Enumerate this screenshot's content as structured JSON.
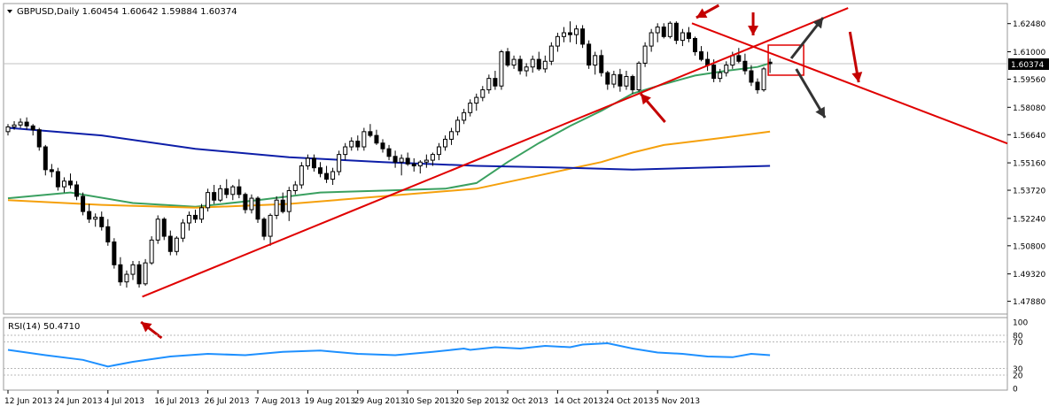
{
  "header": {
    "symbol_line": "GBPUSD,Daily  1.60454 1.60642 1.59884 1.60374",
    "menu_icon": "triangle-down-icon"
  },
  "rsi": {
    "label": "RSI(14) 50.4710",
    "levels": [
      100,
      80,
      70,
      30,
      20,
      0
    ],
    "level_labels": [
      "100",
      "80",
      "70",
      "30",
      "20",
      "0"
    ]
  },
  "current_price": "1.60374",
  "colors": {
    "bull": "#ffffff",
    "bear": "#000000",
    "trend": "#e00000",
    "ma_green": "#3aa060",
    "ma_orange": "#f5a00c",
    "ma_blue": "#0d1ea8",
    "rsi": "#1e90ff",
    "arrow_red": "#c40000",
    "arrow_dark": "#333333"
  },
  "chart_data": [
    {
      "type": "candlestick",
      "title": "GBPUSD,Daily",
      "ohlc_header": {
        "open": 1.60454,
        "high": 1.60642,
        "low": 1.59884,
        "close": 1.60374
      },
      "ylim": [
        1.4735,
        1.6335
      ],
      "yticks": [
        1.6248,
        1.61,
        1.5956,
        1.5808,
        1.5664,
        1.5516,
        1.5372,
        1.5224,
        1.508,
        1.4932,
        1.4788
      ],
      "ytick_labels": [
        "1.62480",
        "1.61000",
        "1.59560",
        "1.58080",
        "1.56640",
        "1.55160",
        "1.53720",
        "1.52240",
        "1.50800",
        "1.49320",
        "1.47880"
      ],
      "xtick_labels": [
        "12 Jun 2013",
        "24 Jun 2013",
        "4 Jul 2013",
        "16 Jul 2013",
        "26 Jul 2013",
        "7 Aug 2013",
        "19 Aug 2013",
        "29 Aug 2013",
        "10 Sep 2013",
        "20 Sep 2013",
        "2 Oct 2013",
        "14 Oct 2013",
        "24 Oct 2013",
        "5 Nov 2013"
      ],
      "xtick_index": [
        0,
        8,
        16,
        24,
        32,
        40,
        48,
        56,
        64,
        72,
        80,
        88,
        96,
        104
      ],
      "candles": [
        [
          1.568,
          1.572,
          1.566,
          1.5705
        ],
        [
          1.5705,
          1.5735,
          1.569,
          1.5715
        ],
        [
          1.5715,
          1.575,
          1.57,
          1.573
        ],
        [
          1.573,
          1.5755,
          1.569,
          1.571
        ],
        [
          1.571,
          1.572,
          1.566,
          1.569
        ],
        [
          1.569,
          1.57,
          1.558,
          1.56
        ],
        [
          1.56,
          1.561,
          1.545,
          1.548
        ],
        [
          1.548,
          1.551,
          1.544,
          1.547
        ],
        [
          1.547,
          1.549,
          1.537,
          1.539
        ],
        [
          1.539,
          1.544,
          1.536,
          1.542
        ],
        [
          1.542,
          1.546,
          1.538,
          1.54
        ],
        [
          1.54,
          1.542,
          1.532,
          1.534
        ],
        [
          1.534,
          1.536,
          1.524,
          1.526
        ],
        [
          1.526,
          1.53,
          1.52,
          1.522
        ],
        [
          1.522,
          1.525,
          1.518,
          1.523
        ],
        [
          1.523,
          1.526,
          1.516,
          1.518
        ],
        [
          1.518,
          1.522,
          1.508,
          1.51
        ],
        [
          1.51,
          1.512,
          1.496,
          1.498
        ],
        [
          1.498,
          1.502,
          1.487,
          1.489
        ],
        [
          1.489,
          1.495,
          1.486,
          1.493
        ],
        [
          1.493,
          1.5,
          1.49,
          1.498
        ],
        [
          1.498,
          1.5,
          1.486,
          1.488
        ],
        [
          1.488,
          1.501,
          1.487,
          1.499
        ],
        [
          1.499,
          1.513,
          1.498,
          1.511
        ],
        [
          1.511,
          1.524,
          1.509,
          1.522
        ],
        [
          1.522,
          1.523,
          1.511,
          1.513
        ],
        [
          1.513,
          1.516,
          1.503,
          1.505
        ],
        [
          1.505,
          1.513,
          1.503,
          1.512
        ],
        [
          1.512,
          1.522,
          1.51,
          1.52
        ],
        [
          1.52,
          1.526,
          1.516,
          1.524
        ],
        [
          1.524,
          1.527,
          1.52,
          1.522
        ],
        [
          1.522,
          1.53,
          1.52,
          1.528
        ],
        [
          1.528,
          1.538,
          1.526,
          1.536
        ],
        [
          1.536,
          1.54,
          1.53,
          1.532
        ],
        [
          1.532,
          1.54,
          1.531,
          1.538
        ],
        [
          1.538,
          1.543,
          1.533,
          1.535
        ],
        [
          1.535,
          1.54,
          1.532,
          1.539
        ],
        [
          1.539,
          1.543,
          1.533,
          1.535
        ],
        [
          1.535,
          1.536,
          1.525,
          1.527
        ],
        [
          1.527,
          1.535,
          1.525,
          1.533
        ],
        [
          1.533,
          1.534,
          1.52,
          1.522
        ],
        [
          1.522,
          1.523,
          1.511,
          1.513
        ],
        [
          1.513,
          1.525,
          1.508,
          1.524
        ],
        [
          1.524,
          1.534,
          1.522,
          1.532
        ],
        [
          1.532,
          1.536,
          1.525,
          1.526
        ],
        [
          1.526,
          1.539,
          1.521,
          1.537
        ],
        [
          1.537,
          1.542,
          1.535,
          1.54
        ],
        [
          1.54,
          1.552,
          1.538,
          1.55
        ],
        [
          1.55,
          1.556,
          1.548,
          1.554
        ],
        [
          1.554,
          1.556,
          1.547,
          1.549
        ],
        [
          1.549,
          1.552,
          1.544,
          1.546
        ],
        [
          1.546,
          1.55,
          1.541,
          1.543
        ],
        [
          1.543,
          1.549,
          1.54,
          1.547
        ],
        [
          1.547,
          1.558,
          1.545,
          1.556
        ],
        [
          1.556,
          1.562,
          1.553,
          1.56
        ],
        [
          1.56,
          1.565,
          1.558,
          1.563
        ],
        [
          1.563,
          1.566,
          1.558,
          1.56
        ],
        [
          1.56,
          1.57,
          1.558,
          1.568
        ],
        [
          1.568,
          1.572,
          1.565,
          1.566
        ],
        [
          1.566,
          1.569,
          1.561,
          1.562
        ],
        [
          1.562,
          1.564,
          1.557,
          1.559
        ],
        [
          1.559,
          1.561,
          1.553,
          1.555
        ],
        [
          1.555,
          1.558,
          1.549,
          1.552
        ],
        [
          1.552,
          1.556,
          1.545,
          1.554
        ],
        [
          1.554,
          1.557,
          1.55,
          1.551
        ],
        [
          1.551,
          1.554,
          1.547,
          1.55
        ],
        [
          1.55,
          1.553,
          1.546,
          1.552
        ],
        [
          1.552,
          1.556,
          1.549,
          1.553
        ],
        [
          1.553,
          1.557,
          1.55,
          1.556
        ],
        [
          1.556,
          1.562,
          1.553,
          1.56
        ],
        [
          1.56,
          1.566,
          1.558,
          1.564
        ],
        [
          1.564,
          1.57,
          1.561,
          1.568
        ],
        [
          1.568,
          1.576,
          1.566,
          1.574
        ],
        [
          1.574,
          1.58,
          1.572,
          1.578
        ],
        [
          1.578,
          1.585,
          1.576,
          1.583
        ],
        [
          1.583,
          1.588,
          1.579,
          1.586
        ],
        [
          1.586,
          1.592,
          1.584,
          1.59
        ],
        [
          1.59,
          1.598,
          1.588,
          1.596
        ],
        [
          1.596,
          1.6,
          1.59,
          1.592
        ],
        [
          1.592,
          1.611,
          1.59,
          1.61
        ],
        [
          1.61,
          1.612,
          1.602,
          1.603
        ],
        [
          1.603,
          1.608,
          1.601,
          1.606
        ],
        [
          1.606,
          1.608,
          1.598,
          1.6
        ],
        [
          1.6,
          1.604,
          1.597,
          1.602
        ],
        [
          1.602,
          1.608,
          1.599,
          1.606
        ],
        [
          1.606,
          1.61,
          1.6,
          1.601
        ],
        [
          1.601,
          1.608,
          1.599,
          1.605
        ],
        [
          1.605,
          1.615,
          1.603,
          1.613
        ],
        [
          1.613,
          1.62,
          1.61,
          1.618
        ],
        [
          1.618,
          1.623,
          1.615,
          1.62
        ],
        [
          1.62,
          1.626,
          1.615,
          1.619
        ],
        [
          1.619,
          1.624,
          1.614,
          1.622
        ],
        [
          1.622,
          1.624,
          1.612,
          1.614
        ],
        [
          1.614,
          1.616,
          1.601,
          1.603
        ],
        [
          1.603,
          1.61,
          1.598,
          1.608
        ],
        [
          1.608,
          1.611,
          1.597,
          1.599
        ],
        [
          1.599,
          1.6,
          1.59,
          1.593
        ],
        [
          1.593,
          1.6,
          1.591,
          1.598
        ],
        [
          1.598,
          1.601,
          1.589,
          1.592
        ],
        [
          1.592,
          1.6,
          1.59,
          1.597
        ],
        [
          1.597,
          1.598,
          1.588,
          1.59
        ],
        [
          1.59,
          1.605,
          1.589,
          1.604
        ],
        [
          1.604,
          1.615,
          1.602,
          1.613
        ],
        [
          1.613,
          1.622,
          1.61,
          1.62
        ],
        [
          1.62,
          1.625,
          1.615,
          1.623
        ],
        [
          1.623,
          1.625,
          1.617,
          1.618
        ],
        [
          1.618,
          1.626,
          1.617,
          1.625
        ],
        [
          1.625,
          1.626,
          1.614,
          1.616
        ],
        [
          1.616,
          1.622,
          1.613,
          1.62
        ],
        [
          1.62,
          1.623,
          1.615,
          1.617
        ],
        [
          1.617,
          1.618,
          1.608,
          1.61
        ],
        [
          1.61,
          1.613,
          1.605,
          1.606
        ],
        [
          1.606,
          1.61,
          1.6,
          1.603
        ],
        [
          1.603,
          1.606,
          1.594,
          1.596
        ],
        [
          1.596,
          1.601,
          1.594,
          1.599
        ],
        [
          1.599,
          1.605,
          1.597,
          1.603
        ],
        [
          1.603,
          1.61,
          1.601,
          1.608
        ],
        [
          1.608,
          1.612,
          1.604,
          1.605
        ],
        [
          1.605,
          1.609,
          1.598,
          1.6
        ],
        [
          1.6,
          1.603,
          1.592,
          1.594
        ],
        [
          1.594,
          1.596,
          1.588,
          1.59
        ],
        [
          1.59,
          1.602,
          1.589,
          1.601
        ],
        [
          1.60454,
          1.60642,
          1.59884,
          1.60374
        ]
      ],
      "series": [
        {
          "name": "MA green",
          "values": [
            [
              0,
              1.533
            ],
            [
              10,
              1.536
            ],
            [
              20,
              1.5305
            ],
            [
              30,
              1.5285
            ],
            [
              40,
              1.532
            ],
            [
              50,
              1.536
            ],
            [
              60,
              1.537
            ],
            [
              70,
              1.538
            ],
            [
              75,
              1.541
            ],
            [
              80,
              1.552
            ],
            [
              85,
              1.562
            ],
            [
              90,
              1.571
            ],
            [
              95,
              1.579
            ],
            [
              100,
              1.588
            ],
            [
              105,
              1.593
            ],
            [
              110,
              1.5975
            ],
            [
              115,
              1.6
            ],
            [
              120,
              1.602
            ],
            [
              122,
              1.604
            ]
          ]
        },
        {
          "name": "MA orange",
          "values": [
            [
              0,
              1.532
            ],
            [
              15,
              1.5295
            ],
            [
              30,
              1.528
            ],
            [
              45,
              1.53
            ],
            [
              60,
              1.534
            ],
            [
              75,
              1.538
            ],
            [
              85,
              1.545
            ],
            [
              95,
              1.552
            ],
            [
              100,
              1.557
            ],
            [
              105,
              1.561
            ],
            [
              110,
              1.563
            ],
            [
              115,
              1.565
            ],
            [
              122,
              1.568
            ]
          ]
        },
        {
          "name": "MA blue",
          "values": [
            [
              0,
              1.57
            ],
            [
              15,
              1.566
            ],
            [
              30,
              1.559
            ],
            [
              45,
              1.5545
            ],
            [
              60,
              1.552
            ],
            [
              75,
              1.55
            ],
            [
              90,
              1.549
            ],
            [
              100,
              1.548
            ],
            [
              110,
              1.549
            ],
            [
              122,
              1.55
            ]
          ]
        },
        {
          "name": "RSI(14)",
          "values": [
            [
              0,
              58
            ],
            [
              6,
              50
            ],
            [
              12,
              43
            ],
            [
              16,
              33
            ],
            [
              20,
              40
            ],
            [
              26,
              48
            ],
            [
              32,
              52
            ],
            [
              38,
              50
            ],
            [
              44,
              55
            ],
            [
              50,
              57
            ],
            [
              56,
              52
            ],
            [
              62,
              50
            ],
            [
              68,
              55
            ],
            [
              73,
              60
            ],
            [
              74,
              58
            ],
            [
              78,
              62
            ],
            [
              82,
              60
            ],
            [
              86,
              64
            ],
            [
              90,
              62
            ],
            [
              92,
              66
            ],
            [
              96,
              68
            ],
            [
              100,
              60
            ],
            [
              104,
              54
            ],
            [
              108,
              52
            ],
            [
              112,
              48
            ],
            [
              116,
              47
            ],
            [
              119,
              52
            ],
            [
              122,
              50
            ]
          ]
        }
      ]
    }
  ]
}
